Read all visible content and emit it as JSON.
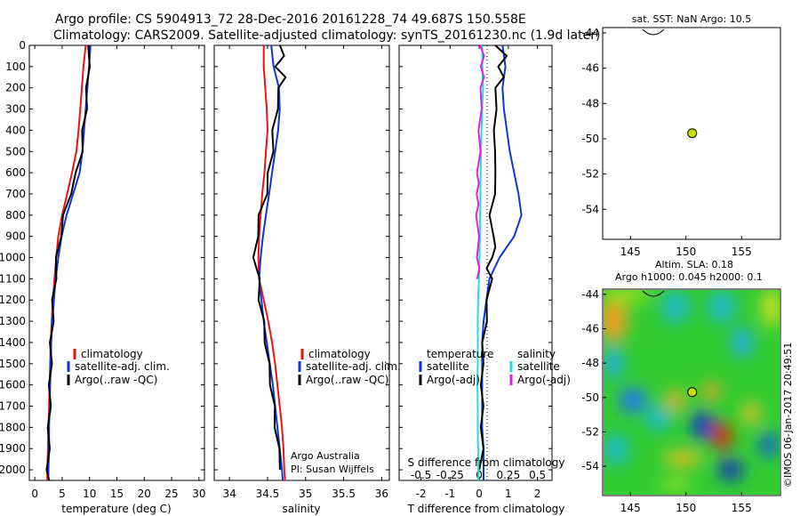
{
  "header": {
    "line1": "Argo profile: CS 5904913_72 28-Dec-2016 20161228_74 49.687S 150.558E",
    "line2": "Climatology: CARS2009. Satellite-adjusted climatology: synTS_20161230.nc (1.9d later)"
  },
  "footer": {
    "stamp": "©IMOS 06-Jan-2017 20:49:51"
  },
  "colors": {
    "climatology": "#ee1111",
    "satellite": "#1133dd",
    "argo": "#000000",
    "salinity_satellite": "#22dddd",
    "salinity_argo": "#dd22dd",
    "marker": "#cce000"
  },
  "panels": {
    "temperature": {
      "xlabel": "temperature (deg C)",
      "legend": [
        "climatology",
        "satellite-adj. clim.",
        "Argo(..raw -QC)"
      ]
    },
    "salinity": {
      "xlabel": "salinity",
      "legend": [
        "climatology",
        "satellite-adj. clim.",
        "Argo(..raw -QC)"
      ],
      "credit_1": "Argo Australia",
      "credit_2": "PI: Susan Wijffels"
    },
    "difference": {
      "xlabel": "T difference from climatology",
      "top_label": "S difference from climatology",
      "legend": {
        "temperature_heading": "temperature",
        "salinity_heading": "salinity",
        "t_satellite": "satellite",
        "t_argo": "Argo(-adj)",
        "s_satellite": "satellite",
        "s_argo": "Argo(-adj)"
      }
    }
  },
  "maps": {
    "sst": {
      "title": "sat. SST: NaN Argo: 10.5"
    },
    "sla": {
      "title_line_1": "Altim. SLA: 0.18",
      "title_line_2": "Argo h1000: 0.045 h2000: 0.1"
    }
  },
  "chart_data": [
    {
      "type": "line",
      "name": "temperature profile",
      "xlabel": "temperature (deg C)",
      "ylabel": "",
      "xlim": [
        -1,
        31
      ],
      "ylim": [
        2050,
        0
      ],
      "xticks": [
        0,
        5,
        10,
        15,
        20,
        25,
        30
      ],
      "yticks": [
        0,
        100,
        200,
        300,
        400,
        500,
        600,
        700,
        800,
        900,
        1000,
        1100,
        1200,
        1300,
        1400,
        1500,
        1600,
        1700,
        1800,
        1900,
        2000
      ],
      "series": [
        {
          "name": "climatology",
          "color": "#ee1111",
          "depth": [
            0,
            100,
            200,
            300,
            400,
            500,
            600,
            700,
            800,
            900,
            1000,
            1100,
            1200,
            1300,
            1400,
            1500,
            1600,
            1700,
            1800,
            1900,
            2000,
            2050
          ],
          "values": [
            9.3,
            8.9,
            8.6,
            8.3,
            8.0,
            7.6,
            6.8,
            5.9,
            5.0,
            4.3,
            3.9,
            3.6,
            3.3,
            3.1,
            2.9,
            2.8,
            2.7,
            2.6,
            2.5,
            2.4,
            2.3,
            2.3
          ]
        },
        {
          "name": "satellite-adj. clim.",
          "color": "#1133dd",
          "depth": [
            0,
            100,
            200,
            300,
            400,
            500,
            600,
            700,
            800,
            900,
            1000,
            1100,
            1200,
            1300,
            1400,
            1500,
            1600,
            1700,
            1800,
            1900,
            2000,
            2050
          ],
          "values": [
            10.2,
            9.9,
            9.6,
            9.3,
            9.0,
            8.7,
            8.2,
            7.0,
            5.8,
            4.9,
            4.3,
            3.8,
            3.5,
            3.2,
            3.0,
            2.9,
            2.8,
            2.7,
            2.6,
            2.6,
            2.5,
            2.5
          ]
        },
        {
          "name": "Argo(..raw -QC)",
          "color": "#000000",
          "depth": [
            0,
            100,
            200,
            300,
            400,
            500,
            600,
            700,
            800,
            900,
            1000,
            1100,
            1200,
            1300,
            1400,
            1500,
            1600,
            1700,
            1800,
            1900,
            2000,
            2050
          ],
          "values": [
            10.0,
            9.8,
            9.6,
            9.3,
            8.9,
            8.5,
            7.7,
            6.4,
            5.4,
            4.6,
            4.1,
            3.7,
            3.4,
            3.2,
            3.0,
            2.9,
            2.8,
            2.7,
            2.6,
            2.5,
            2.4,
            2.4
          ]
        }
      ]
    },
    {
      "type": "line",
      "name": "salinity profile",
      "xlabel": "salinity",
      "ylabel": "",
      "xlim": [
        33.8,
        36.1
      ],
      "ylim": [
        2050,
        0
      ],
      "xticks": [
        34,
        34.5,
        35,
        35.5,
        36
      ],
      "series": [
        {
          "name": "climatology",
          "color": "#ee1111",
          "depth": [
            0,
            100,
            200,
            300,
            400,
            500,
            600,
            700,
            800,
            900,
            1000,
            1100,
            1200,
            1300,
            1400,
            1500,
            1600,
            1700,
            1800,
            1900,
            2000,
            2050
          ],
          "values": [
            34.45,
            34.45,
            34.47,
            34.49,
            34.5,
            34.48,
            34.46,
            34.43,
            34.41,
            34.39,
            34.38,
            34.39,
            34.45,
            34.51,
            34.56,
            34.6,
            34.63,
            34.66,
            34.69,
            34.71,
            34.72,
            34.73
          ]
        },
        {
          "name": "satellite-adj. clim.",
          "color": "#1133dd",
          "depth": [
            0,
            100,
            200,
            300,
            400,
            500,
            600,
            700,
            800,
            900,
            1000,
            1100,
            1200,
            1300,
            1400,
            1500,
            1600,
            1700,
            1800,
            1900,
            2000,
            2050
          ],
          "values": [
            34.55,
            34.58,
            34.65,
            34.66,
            34.64,
            34.6,
            34.56,
            34.52,
            34.48,
            34.44,
            34.41,
            34.39,
            34.42,
            34.45,
            34.49,
            34.53,
            34.57,
            34.6,
            34.63,
            34.66,
            34.69,
            34.7
          ]
        },
        {
          "name": "Argo(..raw -QC)",
          "color": "#000000",
          "depth": [
            0,
            50,
            100,
            150,
            200,
            300,
            400,
            500,
            600,
            700,
            800,
            900,
            1000,
            1100,
            1200,
            1300,
            1400,
            1500,
            1600,
            1700,
            1800,
            1900,
            2000
          ],
          "values": [
            34.68,
            34.7,
            34.62,
            34.72,
            34.66,
            34.62,
            34.58,
            34.56,
            34.52,
            34.48,
            34.4,
            34.36,
            34.33,
            34.38,
            34.4,
            34.44,
            34.48,
            34.51,
            34.55,
            34.58,
            34.61,
            34.64,
            34.68
          ]
        }
      ]
    },
    {
      "type": "line",
      "name": "difference from climatology",
      "xlabel": "T difference from climatology",
      "top_label": "S difference from climatology",
      "xlim": [
        -2.75,
        2.5
      ],
      "ylim": [
        2050,
        0
      ],
      "xticks": [
        -2,
        -1,
        0,
        1,
        2
      ],
      "top_ticks": [
        -0.5,
        -0.25,
        0,
        0.25,
        0.5
      ],
      "series": [
        {
          "name": "temperature satellite",
          "color": "#1133dd",
          "depth": [
            0,
            100,
            200,
            300,
            400,
            500,
            600,
            700,
            800,
            900,
            1000,
            1100,
            1200,
            1300,
            1400,
            1500,
            1600,
            1700,
            1800,
            1900,
            2000,
            2050
          ],
          "values": [
            0.8,
            0.9,
            0.8,
            0.85,
            0.95,
            1.05,
            1.2,
            1.35,
            1.45,
            1.2,
            0.7,
            0.35,
            0.25,
            0.15,
            0.1,
            0.1,
            0.1,
            0.1,
            0.1,
            0.15,
            0.15,
            0.15
          ]
        },
        {
          "name": "temperature Argo(-adj)",
          "color": "#000000",
          "depth": [
            0,
            50,
            100,
            150,
            200,
            300,
            400,
            500,
            600,
            700,
            800,
            900,
            950,
            1000,
            1050,
            1100,
            1200,
            1300,
            1400,
            1500,
            1600,
            1700,
            1800,
            1900,
            2000
          ],
          "values": [
            0.6,
            0.9,
            0.7,
            0.8,
            0.6,
            0.55,
            0.55,
            0.5,
            0.6,
            0.5,
            0.4,
            0.45,
            0.6,
            0.4,
            0.3,
            0.4,
            0.3,
            0.22,
            0.15,
            0.1,
            0.1,
            0.1,
            0.1,
            0.1,
            0.05
          ]
        },
        {
          "name": "salinity satellite",
          "color": "#22dddd",
          "depth": [
            0,
            100,
            200,
            300,
            400,
            500,
            600,
            700,
            800,
            900,
            1000,
            1100,
            1200,
            1300,
            1400,
            1500,
            1600,
            1700,
            1800,
            1900,
            2000,
            2050
          ],
          "values": [
            0.1,
            0.11,
            0.13,
            0.1,
            0.08,
            0.06,
            0.05,
            0.04,
            0.03,
            0.02,
            0.01,
            -0.01,
            -0.04,
            -0.05,
            -0.05,
            -0.05,
            -0.06,
            -0.05,
            -0.05,
            -0.04,
            -0.03,
            -0.03
          ]
        },
        {
          "name": "salinity Argo(-adj)",
          "color": "#dd22dd",
          "depth": [
            0,
            50,
            100,
            150,
            200,
            300,
            400,
            500,
            600,
            650,
            700,
            750,
            800,
            900,
            1000,
            1050,
            1100
          ],
          "values": [
            0.08,
            0.12,
            0.1,
            0.12,
            0.09,
            0.04,
            0.02,
            0.0,
            -0.03,
            -0.06,
            -0.04,
            -0.07,
            -0.06,
            -0.05,
            -0.03,
            -0.04,
            -0.02
          ]
        }
      ]
    },
    {
      "type": "scatter",
      "name": "sat. SST map",
      "title": "sat. SST: NaN Argo: 10.5",
      "xlim": [
        142.5,
        158.5
      ],
      "ylim": [
        -55.7,
        -43.7
      ],
      "xticks": [
        145,
        150,
        155
      ],
      "yticks": [
        -44,
        -46,
        -48,
        -50,
        -52,
        -54
      ],
      "points": [
        {
          "x": 150.558,
          "y": -49.687
        }
      ]
    },
    {
      "type": "heatmap",
      "name": "altimetry SLA map",
      "title": "Altim. SLA: 0.18 | Argo h1000: 0.045 h2000: 0.1",
      "xlim": [
        142.5,
        158.5
      ],
      "ylim": [
        -55.7,
        -43.7
      ],
      "xticks": [
        145,
        150,
        155
      ],
      "yticks": [
        -44,
        -46,
        -48,
        -50,
        -52,
        -54
      ],
      "points": [
        {
          "x": 150.558,
          "y": -49.687
        }
      ]
    }
  ]
}
